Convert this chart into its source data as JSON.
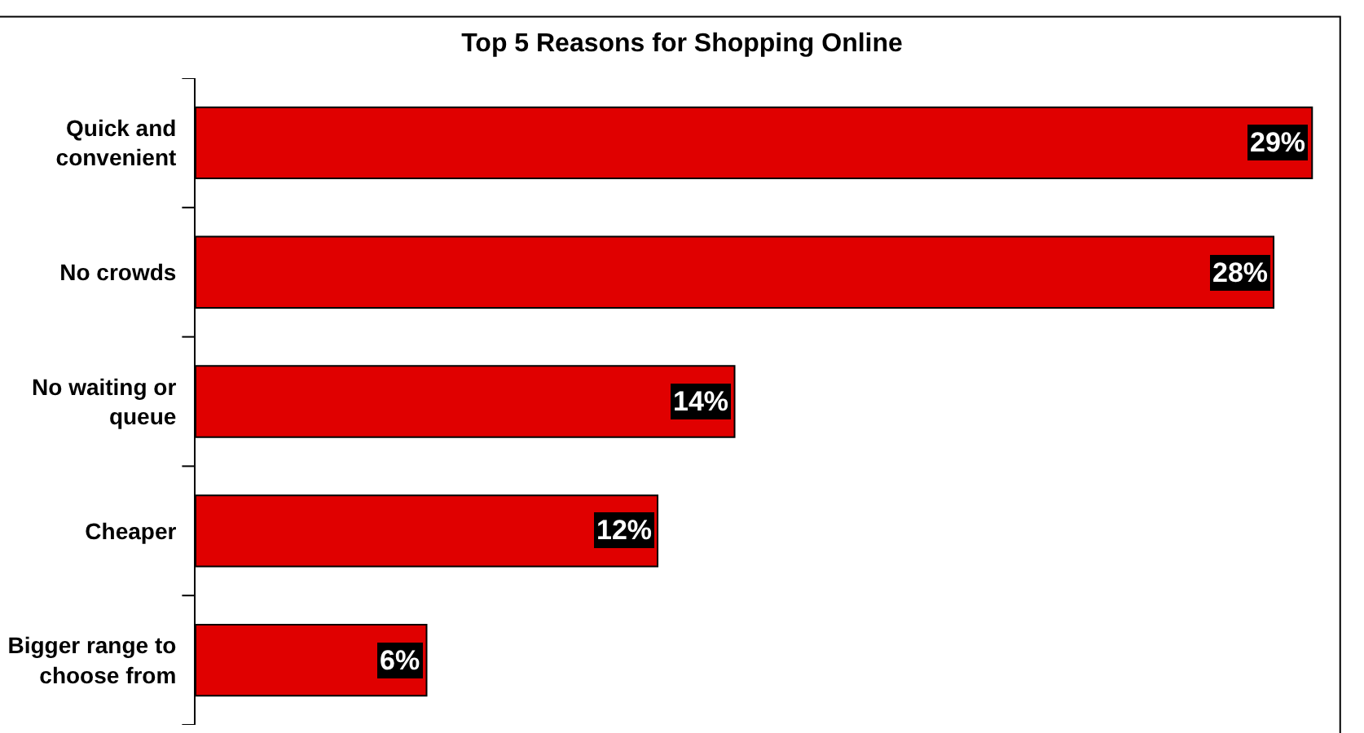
{
  "chart_data": {
    "type": "bar",
    "orientation": "horizontal",
    "title": "Top 5 Reasons for Shopping Online",
    "categories": [
      "Quick and convenient",
      "No crowds",
      "No waiting or queue",
      "Cheaper",
      "Bigger range to choose from"
    ],
    "values": [
      29,
      28,
      14,
      12,
      6
    ],
    "value_labels": [
      "29%",
      "28%",
      "14%",
      "12%",
      "6%"
    ],
    "color": "#e00000"
  }
}
